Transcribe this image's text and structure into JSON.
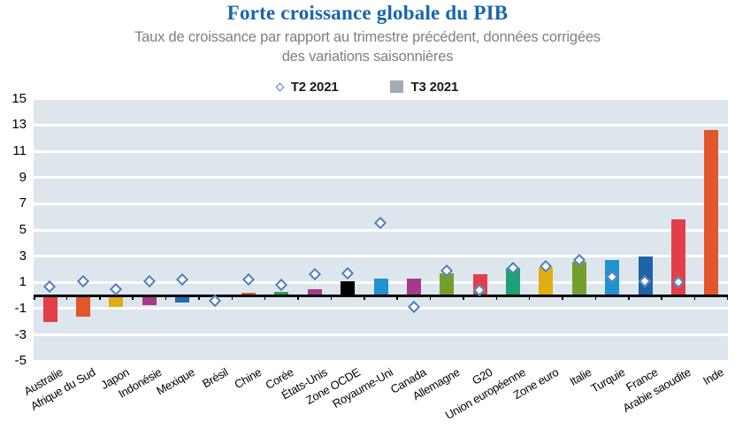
{
  "header": {
    "title": "Forte croissance globale du PIB",
    "title_color": "#1766af",
    "subtitle_line1": "Taux de croissance par rapport au trimestre précédent, données corrigées",
    "subtitle_line2": "des variations saisonnières",
    "subtitle_color": "#808080"
  },
  "legend": {
    "t2_label": "T2 2021",
    "t2_marker_border_color": "#4f81bd",
    "t3_label": "T3 2021",
    "t3_swatch_color": "#9fadb8"
  },
  "chart_data": {
    "type": "bar",
    "title": "Forte croissance globale du PIB",
    "subtitle": "Taux de croissance par rapport au trimestre précédent, données corrigées des variations saisonnières",
    "categories": [
      "Australie",
      "Afrique du Sud",
      "Japon",
      "Indonésie",
      "Mexique",
      "Brésil",
      "Chine",
      "Corée",
      "États-Unis",
      "Zone OCDE",
      "Royaume-Uni",
      "Canada",
      "Allemagne",
      "G20",
      "Union européenne",
      "Zone euro",
      "Italie",
      "Turquie",
      "France",
      "Arabie saoudite",
      "Inde"
    ],
    "series": [
      {
        "name": "T2 2021",
        "render": "diamond-marker",
        "marker_border_color": "#4f81bd",
        "values": [
          0.7,
          1.1,
          0.5,
          1.1,
          1.2,
          -0.4,
          1.2,
          0.8,
          1.6,
          1.7,
          5.5,
          -0.9,
          1.9,
          0.4,
          2.1,
          2.2,
          2.7,
          1.4,
          1.1,
          1.0,
          null
        ]
      },
      {
        "name": "T3 2021",
        "render": "bar",
        "values": [
          -2.0,
          -1.6,
          -0.9,
          -0.7,
          -0.5,
          -0.1,
          0.2,
          0.3,
          0.5,
          1.1,
          1.3,
          1.3,
          1.7,
          1.6,
          2.1,
          2.2,
          2.6,
          2.7,
          3.0,
          5.8,
          12.6
        ],
        "bar_colors": [
          "#e33f4a",
          "#e1562a",
          "#e0ad10",
          "#a53a8c",
          "#1f6cb3",
          "#1f6cb3",
          "#e1562a",
          "#2aa04c",
          "#a53a8c",
          "#000000",
          "#2191d0",
          "#a53a8c",
          "#73a02d",
          "#e33f4a",
          "#1fa077",
          "#e0ad10",
          "#73a02d",
          "#2191d0",
          "#1e62a8",
          "#e33f4a",
          "#e1562a"
        ]
      }
    ],
    "ylim": [
      -5,
      15
    ],
    "yticks": [
      15,
      13,
      11,
      9,
      7,
      5,
      3,
      1,
      -1,
      -3,
      -5
    ],
    "grid": "horizontal-white-lines",
    "plot_bg": "#dde6ed",
    "legend_position": "top-center",
    "x_label_rotation_deg": -30
  }
}
